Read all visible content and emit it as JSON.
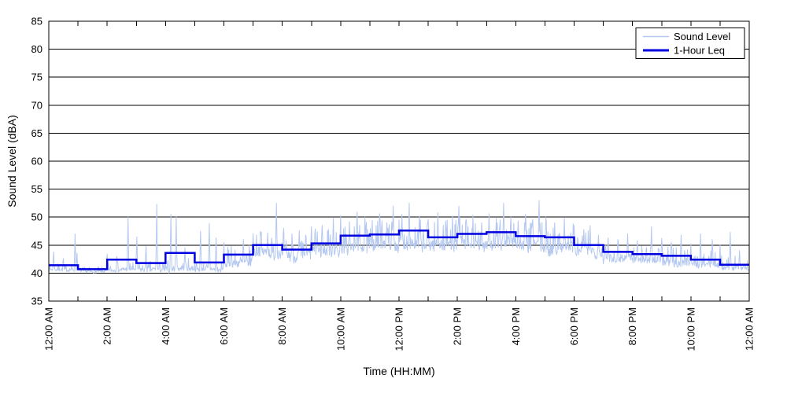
{
  "chart_data": {
    "type": "line",
    "title": "",
    "xlabel": "Time (HH:MM)",
    "ylabel": "Sound Level (dBA)",
    "ylim": [
      35,
      85
    ],
    "yticks": [
      35,
      40,
      45,
      50,
      55,
      60,
      65,
      70,
      75,
      80,
      85
    ],
    "x_range_hours": [
      0,
      24
    ],
    "xtick_hours": [
      0,
      2,
      4,
      6,
      8,
      10,
      12,
      14,
      16,
      18,
      20,
      22,
      24
    ],
    "xtick_labels": [
      "12:00 AM",
      "2:00 AM",
      "4:00 AM",
      "6:00 AM",
      "8:00 AM",
      "10:00 AM",
      "12:00 PM",
      "2:00 PM",
      "4:00 PM",
      "6:00 PM",
      "8:00 PM",
      "10:00 PM",
      "12:00 AM"
    ],
    "minor_tick_every_hours": 1,
    "grid": "horizontal-only",
    "grid_color": "#000000",
    "legend": {
      "position": "top-right",
      "entries": [
        {
          "label": "Sound Level",
          "color": "#b4c8f0",
          "line_width": 1.5
        },
        {
          "label": "1-Hour Leq",
          "color": "#0000e0",
          "line_width": 3
        }
      ]
    },
    "series": [
      {
        "name": "1-Hour Leq",
        "type": "hourly-step",
        "color": "#0000e0",
        "hours": [
          0,
          1,
          2,
          3,
          4,
          5,
          6,
          7,
          8,
          9,
          10,
          11,
          12,
          13,
          14,
          15,
          16,
          17,
          18,
          19,
          20,
          21,
          22,
          23
        ],
        "values_dBA": [
          41.4,
          40.7,
          42.4,
          41.8,
          43.6,
          41.9,
          43.3,
          45.0,
          44.2,
          45.3,
          46.7,
          46.9,
          47.6,
          46.4,
          47.0,
          47.3,
          46.6,
          46.4,
          45.0,
          43.8,
          43.4,
          43.1,
          42.4,
          41.5
        ]
      },
      {
        "name": "Sound Level",
        "type": "minute-trace",
        "color": "#b4c8f0",
        "resolution_minutes": 1,
        "baseline_per_hour": [
          40.5,
          40.3,
          40.5,
          40.6,
          40.7,
          40.6,
          41.7,
          43.4,
          43.0,
          43.6,
          44.6,
          44.9,
          45.2,
          44.8,
          45.0,
          45.1,
          44.8,
          44.5,
          43.6,
          42.7,
          42.2,
          41.9,
          41.4,
          41.0
        ],
        "noise_amplitude_per_hour": [
          0.5,
          0.35,
          0.6,
          0.7,
          0.8,
          0.7,
          1.3,
          1.6,
          1.5,
          1.7,
          1.9,
          1.9,
          1.9,
          1.9,
          1.9,
          1.9,
          1.9,
          1.9,
          1.6,
          1.4,
          1.2,
          1.2,
          1.0,
          0.9
        ],
        "floor_dBA": 39.95,
        "prng_seed": 7,
        "spikes_min_dBA": [
          [
            10,
            43.8
          ],
          [
            30,
            42.6
          ],
          [
            54,
            47.0
          ],
          [
            58,
            43.6
          ],
          [
            120,
            43.4
          ],
          [
            140,
            43.0
          ],
          [
            163,
            50.0
          ],
          [
            181,
            46.5
          ],
          [
            200,
            44.8
          ],
          [
            222,
            52.3
          ],
          [
            251,
            50.5
          ],
          [
            262,
            50.2
          ],
          [
            280,
            44.5
          ],
          [
            312,
            47.5
          ],
          [
            330,
            48.9
          ],
          [
            344,
            46.3
          ],
          [
            360,
            45.5
          ],
          [
            375,
            44.8
          ],
          [
            400,
            46.0
          ],
          [
            420,
            47.0
          ],
          [
            436,
            46.8
          ],
          [
            450,
            47.2
          ],
          [
            468,
            52.5
          ],
          [
            483,
            48.0
          ],
          [
            500,
            47.0
          ],
          [
            515,
            47.6
          ],
          [
            528,
            46.8
          ],
          [
            540,
            48.3
          ],
          [
            552,
            47.4
          ],
          [
            562,
            48.5
          ],
          [
            575,
            47.8
          ],
          [
            585,
            49.8
          ],
          [
            600,
            50.3
          ],
          [
            618,
            49.2
          ],
          [
            634,
            50.9
          ],
          [
            650,
            50.0
          ],
          [
            665,
            49.4
          ],
          [
            680,
            50.6
          ],
          [
            695,
            49.0
          ],
          [
            708,
            52.0
          ],
          [
            726,
            50.5
          ],
          [
            741,
            52.5
          ],
          [
            762,
            50.2
          ],
          [
            780,
            49.6
          ],
          [
            800,
            50.8
          ],
          [
            816,
            49.3
          ],
          [
            830,
            50.2
          ],
          [
            843,
            52.0
          ],
          [
            858,
            49.6
          ],
          [
            872,
            50.4
          ],
          [
            890,
            49.0
          ],
          [
            905,
            50.6
          ],
          [
            920,
            49.8
          ],
          [
            935,
            52.5
          ],
          [
            950,
            50.0
          ],
          [
            965,
            49.3
          ],
          [
            980,
            50.5
          ],
          [
            995,
            49.6
          ],
          [
            1008,
            53.0
          ],
          [
            1022,
            50.0
          ],
          [
            1040,
            49.0
          ],
          [
            1060,
            49.8
          ],
          [
            1080,
            48.5
          ],
          [
            1100,
            47.8
          ],
          [
            1113,
            48.5
          ],
          [
            1130,
            46.8
          ],
          [
            1150,
            46.3
          ],
          [
            1170,
            46.0
          ],
          [
            1190,
            47.0
          ],
          [
            1210,
            45.8
          ],
          [
            1239,
            48.3
          ],
          [
            1260,
            46.2
          ],
          [
            1280,
            45.5
          ],
          [
            1300,
            46.8
          ],
          [
            1320,
            45.2
          ],
          [
            1340,
            47.0
          ],
          [
            1364,
            46.0
          ],
          [
            1380,
            45.0
          ],
          [
            1401,
            47.3
          ],
          [
            1420,
            44.0
          ]
        ]
      }
    ]
  }
}
